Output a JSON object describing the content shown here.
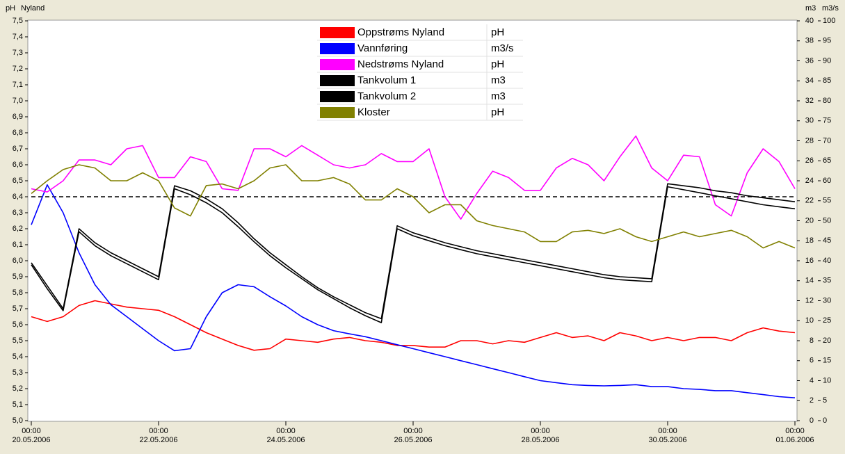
{
  "chart_data": {
    "type": "line",
    "y_axis_title": "pH",
    "chart_label": "Nyland",
    "y2_axis_title": "m3",
    "y3_axis_title": "m3/s",
    "x": [
      "2006-05-20 00:00",
      "2006-05-20 06:00",
      "2006-05-20 12:00",
      "2006-05-20 18:00",
      "2006-05-21 00:00",
      "2006-05-21 06:00",
      "2006-05-21 12:00",
      "2006-05-21 18:00",
      "2006-05-22 00:00",
      "2006-05-22 06:00",
      "2006-05-22 12:00",
      "2006-05-22 18:00",
      "2006-05-23 00:00",
      "2006-05-23 06:00",
      "2006-05-23 12:00",
      "2006-05-23 18:00",
      "2006-05-24 00:00",
      "2006-05-24 06:00",
      "2006-05-24 12:00",
      "2006-05-24 18:00",
      "2006-05-25 00:00",
      "2006-05-25 06:00",
      "2006-05-25 12:00",
      "2006-05-25 18:00",
      "2006-05-26 00:00",
      "2006-05-26 06:00",
      "2006-05-26 12:00",
      "2006-05-26 18:00",
      "2006-05-27 00:00",
      "2006-05-27 06:00",
      "2006-05-27 12:00",
      "2006-05-27 18:00",
      "2006-05-28 00:00",
      "2006-05-28 06:00",
      "2006-05-28 12:00",
      "2006-05-28 18:00",
      "2006-05-29 00:00",
      "2006-05-29 06:00",
      "2006-05-29 12:00",
      "2006-05-29 18:00",
      "2006-05-30 00:00",
      "2006-05-30 06:00",
      "2006-05-30 12:00",
      "2006-05-30 18:00",
      "2006-05-31 00:00",
      "2006-05-31 06:00",
      "2006-05-31 12:00",
      "2006-05-31 18:00",
      "2006-06-01 00:00"
    ],
    "xlim": [
      "2006-05-20 00:00",
      "2006-06-01 00:00"
    ],
    "xticks": [
      {
        "value": "2006-05-20 00:00",
        "label": [
          "00:00",
          "20.05.2006"
        ]
      },
      {
        "value": "2006-05-22 00:00",
        "label": [
          "00:00",
          "22.05.2006"
        ]
      },
      {
        "value": "2006-05-24 00:00",
        "label": [
          "00:00",
          "24.05.2006"
        ]
      },
      {
        "value": "2006-05-26 00:00",
        "label": [
          "00:00",
          "26.05.2006"
        ]
      },
      {
        "value": "2006-05-28 00:00",
        "label": [
          "00:00",
          "28.05.2006"
        ]
      },
      {
        "value": "2006-05-30 00:00",
        "label": [
          "00:00",
          "30.05.2006"
        ]
      },
      {
        "value": "2006-06-01 00:00",
        "label": [
          "00:00",
          "01.06.2006"
        ]
      }
    ],
    "ylim": [
      5.0,
      7.5
    ],
    "yticks": [
      {
        "value": 5.0,
        "label": "5,0"
      },
      {
        "value": 5.1,
        "label": "5,1"
      },
      {
        "value": 5.2,
        "label": "5,2"
      },
      {
        "value": 5.3,
        "label": "5,3"
      },
      {
        "value": 5.4,
        "label": "5,4"
      },
      {
        "value": 5.5,
        "label": "5,5"
      },
      {
        "value": 5.6,
        "label": "5,6"
      },
      {
        "value": 5.7,
        "label": "5,7"
      },
      {
        "value": 5.8,
        "label": "5,8"
      },
      {
        "value": 5.9,
        "label": "5,9"
      },
      {
        "value": 6.0,
        "label": "6,0"
      },
      {
        "value": 6.1,
        "label": "6,1"
      },
      {
        "value": 6.2,
        "label": "6,2"
      },
      {
        "value": 6.3,
        "label": "6,3"
      },
      {
        "value": 6.4,
        "label": "6,4"
      },
      {
        "value": 6.5,
        "label": "6,5"
      },
      {
        "value": 6.6,
        "label": "6,6"
      },
      {
        "value": 6.7,
        "label": "6,7"
      },
      {
        "value": 6.8,
        "label": "6,8"
      },
      {
        "value": 6.9,
        "label": "6,9"
      },
      {
        "value": 7.0,
        "label": "7,0"
      },
      {
        "value": 7.1,
        "label": "7,1"
      },
      {
        "value": 7.2,
        "label": "7,2"
      },
      {
        "value": 7.3,
        "label": "7,3"
      },
      {
        "value": 7.4,
        "label": "7,4"
      },
      {
        "value": 7.5,
        "label": "7,5"
      }
    ],
    "y2lim": [
      0,
      40
    ],
    "y2ticks": [
      0,
      2,
      4,
      6,
      8,
      10,
      12,
      14,
      16,
      18,
      20,
      22,
      24,
      26,
      28,
      30,
      32,
      34,
      36,
      38,
      40
    ],
    "y3lim": [
      0,
      100
    ],
    "y3ticks": [
      0,
      5,
      10,
      15,
      20,
      25,
      30,
      35,
      40,
      45,
      50,
      55,
      60,
      65,
      70,
      75,
      80,
      85,
      90,
      95,
      100
    ],
    "reference_line": 6.4,
    "series": [
      {
        "name": "Oppstrøms Nyland",
        "unit": "pH",
        "color": "#ff0000",
        "axis": "y",
        "values": [
          5.65,
          5.62,
          5.65,
          5.72,
          5.75,
          5.73,
          5.71,
          5.7,
          5.69,
          5.65,
          5.6,
          5.55,
          5.51,
          5.47,
          5.44,
          5.45,
          5.51,
          5.5,
          5.49,
          5.51,
          5.52,
          5.5,
          5.49,
          5.47,
          5.47,
          5.46,
          5.46,
          5.5,
          5.5,
          5.48,
          5.5,
          5.49,
          5.52,
          5.55,
          5.52,
          5.53,
          5.5,
          5.55,
          5.53,
          5.5,
          5.52,
          5.5,
          5.52,
          5.52,
          5.5,
          5.55,
          5.58,
          5.56,
          5.55
        ]
      },
      {
        "name": "Vannføring",
        "unit": "m3/s",
        "color": "#0000ff",
        "axis": "y3",
        "values": [
          49,
          59,
          52,
          42,
          34,
          29,
          26,
          23,
          20,
          17.5,
          18,
          26,
          32,
          34,
          33.5,
          31,
          28.7,
          26,
          24,
          22.5,
          21.7,
          21,
          20,
          19,
          18,
          17,
          16,
          15,
          14,
          13,
          12,
          11,
          10,
          9.5,
          9,
          8.8,
          8.7,
          8.8,
          9,
          8.5,
          8.5,
          8,
          7.8,
          7.5,
          7.5,
          7,
          6.5,
          6,
          5.7
        ]
      },
      {
        "name": "Nedstrøms Nyland",
        "unit": "pH",
        "color": "#ff00ff",
        "axis": "y",
        "values": [
          6.45,
          6.43,
          6.5,
          6.63,
          6.63,
          6.6,
          6.7,
          6.72,
          6.52,
          6.52,
          6.65,
          6.62,
          6.45,
          6.44,
          6.7,
          6.7,
          6.65,
          6.72,
          6.66,
          6.6,
          6.58,
          6.6,
          6.67,
          6.62,
          6.62,
          6.7,
          6.4,
          6.26,
          6.42,
          6.56,
          6.52,
          6.44,
          6.44,
          6.58,
          6.64,
          6.6,
          6.5,
          6.65,
          6.78,
          6.58,
          6.5,
          6.66,
          6.65,
          6.35,
          6.28,
          6.55,
          6.7,
          6.62,
          6.45
        ]
      },
      {
        "name": "Tankvolum 1",
        "unit": "m3",
        "color": "#000000",
        "axis": "y2",
        "values": [
          15.8,
          13.5,
          11.2,
          19.2,
          17.8,
          16.8,
          16,
          15.2,
          14.4,
          23.5,
          23,
          22.2,
          21.2,
          19.8,
          18.2,
          16.8,
          15.6,
          14.4,
          13.3,
          12.4,
          11.6,
          10.8,
          10.2,
          19.5,
          18.8,
          18.3,
          17.8,
          17.4,
          17,
          16.7,
          16.4,
          16.1,
          15.8,
          15.5,
          15.2,
          14.9,
          14.6,
          14.4,
          14.3,
          14.2,
          23.7,
          23.5,
          23.3,
          23,
          22.8,
          22.5,
          22.3,
          22.1,
          21.9
        ]
      },
      {
        "name": "Tankvolum 2",
        "unit": "m3",
        "color": "#000000",
        "axis": "y2",
        "values": [
          15.6,
          13.2,
          11.0,
          18.9,
          17.5,
          16.5,
          15.7,
          14.9,
          14.1,
          23.2,
          22.6,
          21.8,
          20.8,
          19.4,
          17.9,
          16.5,
          15.3,
          14.2,
          13.1,
          12.2,
          11.3,
          10.5,
          9.8,
          19.2,
          18.5,
          18.0,
          17.5,
          17.1,
          16.7,
          16.4,
          16.1,
          15.8,
          15.5,
          15.2,
          14.9,
          14.6,
          14.3,
          14.1,
          14.0,
          13.9,
          23.4,
          23.1,
          22.8,
          22.5,
          22.2,
          21.9,
          21.6,
          21.4,
          21.2
        ]
      },
      {
        "name": "Kloster",
        "unit": "pH",
        "color": "#808000",
        "axis": "y",
        "values": [
          6.42,
          6.5,
          6.57,
          6.6,
          6.58,
          6.5,
          6.5,
          6.55,
          6.5,
          6.33,
          6.28,
          6.47,
          6.48,
          6.45,
          6.5,
          6.58,
          6.6,
          6.5,
          6.5,
          6.52,
          6.48,
          6.38,
          6.38,
          6.45,
          6.4,
          6.3,
          6.35,
          6.35,
          6.25,
          6.22,
          6.2,
          6.18,
          6.12,
          6.12,
          6.18,
          6.19,
          6.17,
          6.2,
          6.15,
          6.12,
          6.15,
          6.18,
          6.15,
          6.17,
          6.19,
          6.15,
          6.08,
          6.12,
          6.08
        ]
      }
    ]
  }
}
